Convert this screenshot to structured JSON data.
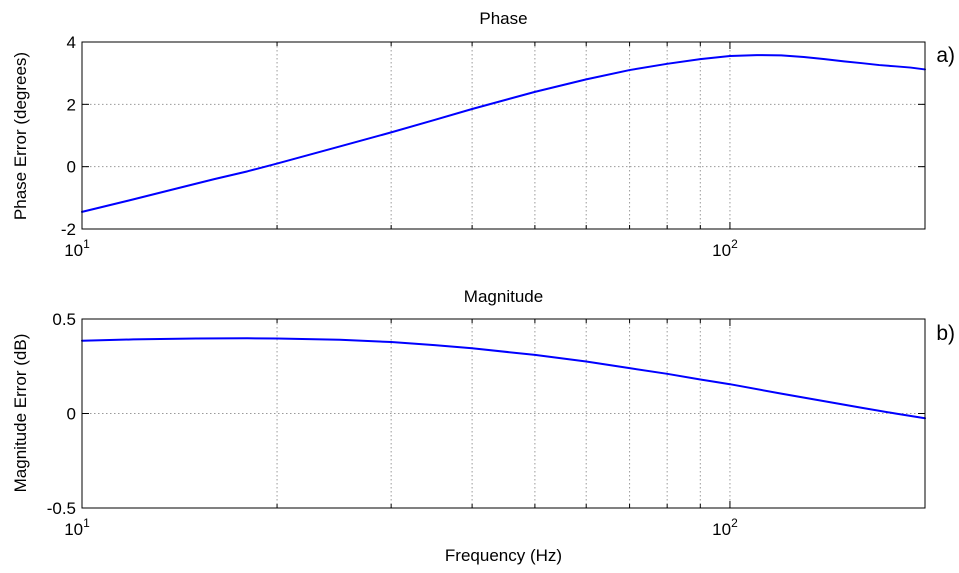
{
  "chart_data": [
    {
      "type": "line",
      "title": "Phase",
      "panel_label": "a)",
      "xlabel": "",
      "ylabel": "Phase Error (degrees)",
      "xscale": "log",
      "xlim": [
        10,
        200
      ],
      "ylim": [
        -2,
        4
      ],
      "xticks": [
        {
          "value": 10,
          "base": "10",
          "exp": "1"
        },
        {
          "value": 100,
          "base": "10",
          "exp": "2"
        }
      ],
      "yticks": [
        {
          "value": -2,
          "label": "-2"
        },
        {
          "value": 0,
          "label": "0"
        },
        {
          "value": 2,
          "label": "2"
        },
        {
          "value": 4,
          "label": "4"
        }
      ],
      "grid": true,
      "series": [
        {
          "color": "#0000ff",
          "x": [
            10,
            12,
            14,
            16,
            18,
            20,
            25,
            30,
            35,
            40,
            50,
            60,
            70,
            80,
            90,
            100,
            110,
            120,
            130,
            140,
            150,
            160,
            170,
            180,
            190,
            200
          ],
          "y": [
            -1.45,
            -1.05,
            -0.7,
            -0.4,
            -0.15,
            0.1,
            0.65,
            1.1,
            1.5,
            1.85,
            2.4,
            2.8,
            3.1,
            3.3,
            3.45,
            3.55,
            3.58,
            3.57,
            3.52,
            3.45,
            3.38,
            3.32,
            3.26,
            3.22,
            3.18,
            3.12
          ]
        }
      ]
    },
    {
      "type": "line",
      "title": "Magnitude",
      "panel_label": "b)",
      "xlabel": "Frequency (Hz)",
      "ylabel": "Magnitude Error (dB)",
      "xscale": "log",
      "xlim": [
        10,
        200
      ],
      "ylim": [
        -0.5,
        0.5
      ],
      "xticks": [
        {
          "value": 10,
          "base": "10",
          "exp": "1"
        },
        {
          "value": 100,
          "base": "10",
          "exp": "2"
        }
      ],
      "yticks": [
        {
          "value": -0.5,
          "label": "-0.5"
        },
        {
          "value": 0,
          "label": "0"
        },
        {
          "value": 0.5,
          "label": "0.5"
        }
      ],
      "grid": true,
      "series": [
        {
          "color": "#0000ff",
          "x": [
            10,
            12,
            15,
            18,
            20,
            25,
            30,
            35,
            40,
            50,
            60,
            70,
            80,
            90,
            100,
            120,
            140,
            160,
            180,
            200
          ],
          "y": [
            0.385,
            0.392,
            0.397,
            0.398,
            0.397,
            0.39,
            0.378,
            0.362,
            0.345,
            0.31,
            0.275,
            0.24,
            0.21,
            0.18,
            0.155,
            0.105,
            0.065,
            0.03,
            0.0,
            -0.025
          ]
        }
      ]
    }
  ]
}
